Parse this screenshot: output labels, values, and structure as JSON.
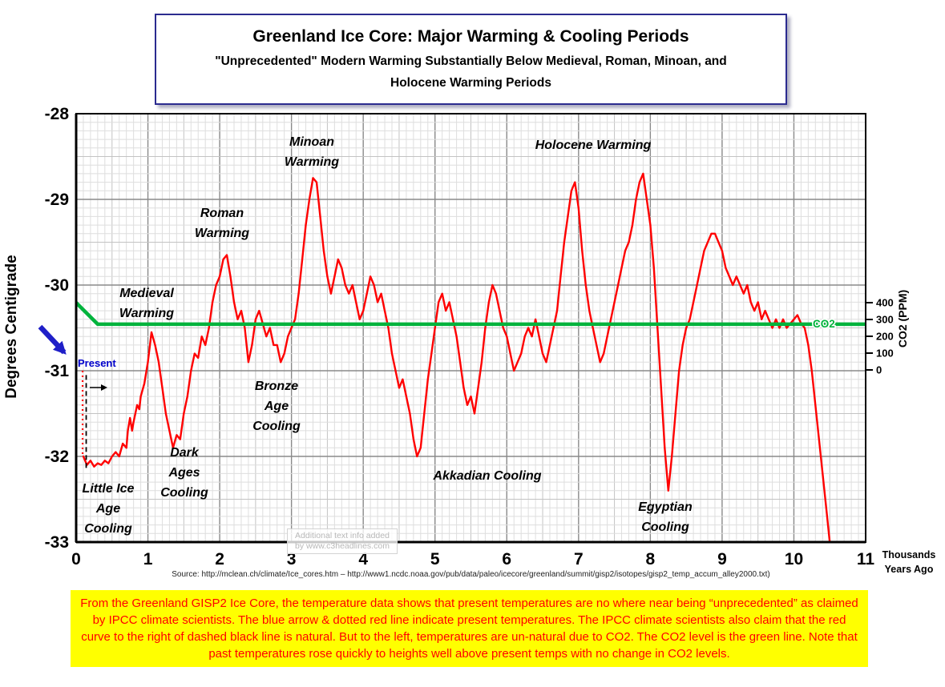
{
  "title_box": {
    "title": "Greenland Ice Core: Major Warming & Cooling Periods",
    "subtitle": "\"Unprecedented\" Modern Warming Substantially Below Medieval, Roman, Minoan, and Holocene Warming Periods"
  },
  "axes": {
    "y_left_label": "Degrees Centigrade",
    "y_right_label": "CO2 (PPM)",
    "x_axis_note": "Thousands\nYears Ago"
  },
  "present_label": "Present",
  "co2_line_label": "CO2",
  "watermark": "Additional text info added\nby www.c3headlines.com",
  "source_line": "Source: http://mclean.ch/climate/Ice_cores.htm  –  http://www1.ncdc.noaa.gov/pub/data/paleo/icecore/greenland/summit/gisp2/isotopes/gisp2_temp_accum_alley2000.txt)",
  "caption_box": {
    "text": "From the Greenland GISP2 Ice Core, the temperature data shows that present temperatures are no where near being “unprecedented” as claimed by IPCC climate scientists. The blue arrow & dotted red line indicate present temperatures. The IPCC climate scientists also claim that the red curve to the right of dashed black line is natural. But to the left, temperatures are un-natural due to CO2. The CO2 level is the green line. Note that past temperatures rose quickly to heights well above present temps with no change in CO2 levels."
  },
  "colors": {
    "temperature_line": "#ff0000",
    "co2_line": "#00b33c",
    "present_text": "#0000cc",
    "blue_arrow": "#1f1fc8",
    "caption_bg": "#ffff00",
    "caption_text": "#ff0000"
  },
  "chart_data": {
    "type": "line",
    "title": "Greenland Ice Core: Major Warming & Cooling Periods",
    "xlabel": "Thousands Years Ago",
    "ylabel_left": "Degrees Centigrade",
    "ylabel_right": "CO2 (PPM)",
    "xlim": [
      0,
      11
    ],
    "ylim_left": [
      -33,
      -28
    ],
    "co2_axis_range": [
      0,
      400
    ],
    "grid": true,
    "x_ticks": [
      0,
      1,
      2,
      3,
      4,
      5,
      6,
      7,
      8,
      9,
      10,
      11
    ],
    "y_ticks_left": [
      -28,
      -29,
      -30,
      -31,
      -32,
      -33
    ],
    "co2_ticks": [
      400,
      300,
      200,
      100,
      0
    ],
    "series": [
      {
        "name": "GISP2 Temperature (°C vs thousands of years ago)",
        "color": "#ff0000",
        "points": [
          [
            0.1,
            -32.0
          ],
          [
            0.15,
            -32.1
          ],
          [
            0.2,
            -32.05
          ],
          [
            0.25,
            -32.12
          ],
          [
            0.3,
            -32.08
          ],
          [
            0.35,
            -32.1
          ],
          [
            0.4,
            -32.05
          ],
          [
            0.45,
            -32.08
          ],
          [
            0.5,
            -32.0
          ],
          [
            0.55,
            -31.95
          ],
          [
            0.6,
            -32.0
          ],
          [
            0.65,
            -31.85
          ],
          [
            0.7,
            -31.9
          ],
          [
            0.72,
            -31.7
          ],
          [
            0.75,
            -31.55
          ],
          [
            0.78,
            -31.7
          ],
          [
            0.8,
            -31.6
          ],
          [
            0.85,
            -31.4
          ],
          [
            0.88,
            -31.45
          ],
          [
            0.9,
            -31.3
          ],
          [
            0.95,
            -31.15
          ],
          [
            1.0,
            -30.9
          ],
          [
            1.05,
            -30.55
          ],
          [
            1.1,
            -30.7
          ],
          [
            1.15,
            -30.9
          ],
          [
            1.2,
            -31.2
          ],
          [
            1.25,
            -31.5
          ],
          [
            1.3,
            -31.7
          ],
          [
            1.35,
            -31.9
          ],
          [
            1.4,
            -31.75
          ],
          [
            1.45,
            -31.8
          ],
          [
            1.5,
            -31.5
          ],
          [
            1.55,
            -31.3
          ],
          [
            1.6,
            -31.0
          ],
          [
            1.65,
            -30.8
          ],
          [
            1.7,
            -30.85
          ],
          [
            1.75,
            -30.6
          ],
          [
            1.8,
            -30.7
          ],
          [
            1.85,
            -30.5
          ],
          [
            1.9,
            -30.2
          ],
          [
            1.95,
            -30.0
          ],
          [
            2.0,
            -29.9
          ],
          [
            2.05,
            -29.7
          ],
          [
            2.1,
            -29.65
          ],
          [
            2.15,
            -29.9
          ],
          [
            2.2,
            -30.2
          ],
          [
            2.25,
            -30.4
          ],
          [
            2.3,
            -30.3
          ],
          [
            2.35,
            -30.5
          ],
          [
            2.4,
            -30.9
          ],
          [
            2.45,
            -30.7
          ],
          [
            2.5,
            -30.4
          ],
          [
            2.55,
            -30.3
          ],
          [
            2.6,
            -30.45
          ],
          [
            2.65,
            -30.6
          ],
          [
            2.7,
            -30.5
          ],
          [
            2.75,
            -30.7
          ],
          [
            2.8,
            -30.7
          ],
          [
            2.85,
            -30.9
          ],
          [
            2.9,
            -30.8
          ],
          [
            2.95,
            -30.6
          ],
          [
            3.0,
            -30.5
          ],
          [
            3.05,
            -30.4
          ],
          [
            3.1,
            -30.1
          ],
          [
            3.15,
            -29.7
          ],
          [
            3.2,
            -29.3
          ],
          [
            3.25,
            -29.0
          ],
          [
            3.3,
            -28.75
          ],
          [
            3.35,
            -28.8
          ],
          [
            3.4,
            -29.2
          ],
          [
            3.45,
            -29.6
          ],
          [
            3.5,
            -29.9
          ],
          [
            3.55,
            -30.1
          ],
          [
            3.6,
            -29.9
          ],
          [
            3.65,
            -29.7
          ],
          [
            3.7,
            -29.8
          ],
          [
            3.75,
            -30.0
          ],
          [
            3.8,
            -30.1
          ],
          [
            3.85,
            -30.0
          ],
          [
            3.9,
            -30.2
          ],
          [
            3.95,
            -30.4
          ],
          [
            4.0,
            -30.3
          ],
          [
            4.05,
            -30.1
          ],
          [
            4.1,
            -29.9
          ],
          [
            4.15,
            -30.0
          ],
          [
            4.2,
            -30.2
          ],
          [
            4.25,
            -30.1
          ],
          [
            4.3,
            -30.3
          ],
          [
            4.35,
            -30.5
          ],
          [
            4.4,
            -30.8
          ],
          [
            4.45,
            -31.0
          ],
          [
            4.5,
            -31.2
          ],
          [
            4.55,
            -31.1
          ],
          [
            4.6,
            -31.3
          ],
          [
            4.65,
            -31.5
          ],
          [
            4.7,
            -31.8
          ],
          [
            4.75,
            -32.0
          ],
          [
            4.8,
            -31.9
          ],
          [
            4.85,
            -31.5
          ],
          [
            4.9,
            -31.1
          ],
          [
            4.95,
            -30.8
          ],
          [
            5.0,
            -30.5
          ],
          [
            5.05,
            -30.2
          ],
          [
            5.1,
            -30.1
          ],
          [
            5.15,
            -30.3
          ],
          [
            5.2,
            -30.2
          ],
          [
            5.25,
            -30.4
          ],
          [
            5.3,
            -30.6
          ],
          [
            5.35,
            -30.9
          ],
          [
            5.4,
            -31.2
          ],
          [
            5.45,
            -31.4
          ],
          [
            5.5,
            -31.3
          ],
          [
            5.55,
            -31.5
          ],
          [
            5.6,
            -31.2
          ],
          [
            5.65,
            -30.9
          ],
          [
            5.7,
            -30.5
          ],
          [
            5.75,
            -30.2
          ],
          [
            5.8,
            -30.0
          ],
          [
            5.85,
            -30.1
          ],
          [
            5.9,
            -30.3
          ],
          [
            5.95,
            -30.5
          ],
          [
            6.0,
            -30.6
          ],
          [
            6.05,
            -30.8
          ],
          [
            6.1,
            -31.0
          ],
          [
            6.15,
            -30.9
          ],
          [
            6.2,
            -30.8
          ],
          [
            6.25,
            -30.6
          ],
          [
            6.3,
            -30.5
          ],
          [
            6.35,
            -30.6
          ],
          [
            6.4,
            -30.4
          ],
          [
            6.45,
            -30.6
          ],
          [
            6.5,
            -30.8
          ],
          [
            6.55,
            -30.9
          ],
          [
            6.6,
            -30.7
          ],
          [
            6.65,
            -30.5
          ],
          [
            6.7,
            -30.3
          ],
          [
            6.75,
            -29.9
          ],
          [
            6.8,
            -29.5
          ],
          [
            6.85,
            -29.2
          ],
          [
            6.9,
            -28.9
          ],
          [
            6.95,
            -28.8
          ],
          [
            7.0,
            -29.1
          ],
          [
            7.05,
            -29.6
          ],
          [
            7.1,
            -30.0
          ],
          [
            7.15,
            -30.3
          ],
          [
            7.2,
            -30.5
          ],
          [
            7.25,
            -30.7
          ],
          [
            7.3,
            -30.9
          ],
          [
            7.35,
            -30.8
          ],
          [
            7.4,
            -30.6
          ],
          [
            7.45,
            -30.4
          ],
          [
            7.5,
            -30.2
          ],
          [
            7.55,
            -30.0
          ],
          [
            7.6,
            -29.8
          ],
          [
            7.65,
            -29.6
          ],
          [
            7.7,
            -29.5
          ],
          [
            7.75,
            -29.3
          ],
          [
            7.8,
            -29.0
          ],
          [
            7.85,
            -28.8
          ],
          [
            7.9,
            -28.7
          ],
          [
            7.95,
            -29.0
          ],
          [
            8.0,
            -29.3
          ],
          [
            8.05,
            -29.8
          ],
          [
            8.1,
            -30.5
          ],
          [
            8.15,
            -31.2
          ],
          [
            8.2,
            -31.9
          ],
          [
            8.25,
            -32.4
          ],
          [
            8.3,
            -32.0
          ],
          [
            8.35,
            -31.5
          ],
          [
            8.4,
            -31.0
          ],
          [
            8.45,
            -30.7
          ],
          [
            8.5,
            -30.5
          ],
          [
            8.55,
            -30.4
          ],
          [
            8.6,
            -30.2
          ],
          [
            8.65,
            -30.0
          ],
          [
            8.7,
            -29.8
          ],
          [
            8.75,
            -29.6
          ],
          [
            8.8,
            -29.5
          ],
          [
            8.85,
            -29.4
          ],
          [
            8.9,
            -29.4
          ],
          [
            8.95,
            -29.5
          ],
          [
            9.0,
            -29.6
          ],
          [
            9.05,
            -29.8
          ],
          [
            9.1,
            -29.9
          ],
          [
            9.15,
            -30.0
          ],
          [
            9.2,
            -29.9
          ],
          [
            9.25,
            -30.0
          ],
          [
            9.3,
            -30.1
          ],
          [
            9.35,
            -30.0
          ],
          [
            9.4,
            -30.2
          ],
          [
            9.45,
            -30.3
          ],
          [
            9.5,
            -30.2
          ],
          [
            9.55,
            -30.4
          ],
          [
            9.6,
            -30.3
          ],
          [
            9.65,
            -30.4
          ],
          [
            9.7,
            -30.5
          ],
          [
            9.75,
            -30.4
          ],
          [
            9.8,
            -30.5
          ],
          [
            9.85,
            -30.4
          ],
          [
            9.9,
            -30.5
          ],
          [
            9.95,
            -30.45
          ],
          [
            10.0,
            -30.4
          ],
          [
            10.05,
            -30.35
          ],
          [
            10.1,
            -30.45
          ],
          [
            10.15,
            -30.5
          ],
          [
            10.2,
            -30.7
          ],
          [
            10.25,
            -31.0
          ],
          [
            10.3,
            -31.4
          ],
          [
            10.35,
            -31.8
          ],
          [
            10.4,
            -32.2
          ],
          [
            10.45,
            -32.6
          ],
          [
            10.5,
            -33.0
          ]
        ]
      },
      {
        "name": "CO2 (PPM)",
        "color": "#00b33c",
        "points": [
          [
            0,
            400
          ],
          [
            0.3,
            272
          ],
          [
            11,
            272
          ]
        ]
      }
    ],
    "present_markers": {
      "dotted_red_line": {
        "x": 0.09,
        "y_from": -31.0,
        "y_to": -32.0
      },
      "dashed_black_line": {
        "x": 0.14,
        "y_from": -31.05,
        "y_to": -32.15
      }
    },
    "annotations": [
      {
        "text": "Minoan\nWarming",
        "x_kyr": 3.3
      },
      {
        "text": "Holocene Warming",
        "x_kyr": 7.2
      },
      {
        "text": "Roman\nWarming",
        "x_kyr": 2.0
      },
      {
        "text": "Medieval\nWarming",
        "x_kyr": 1.0
      },
      {
        "text": "Bronze\nAge\nCooling",
        "x_kyr": 2.8
      },
      {
        "text": "Dark\nAges\nCooling",
        "x_kyr": 1.5
      },
      {
        "text": "Akkadian Cooling",
        "x_kyr": 5.7
      },
      {
        "text": "Egyptian\nCooling",
        "x_kyr": 8.2
      },
      {
        "text": "Little Ice\nAge\nCooling",
        "x_kyr": 0.4
      }
    ]
  }
}
